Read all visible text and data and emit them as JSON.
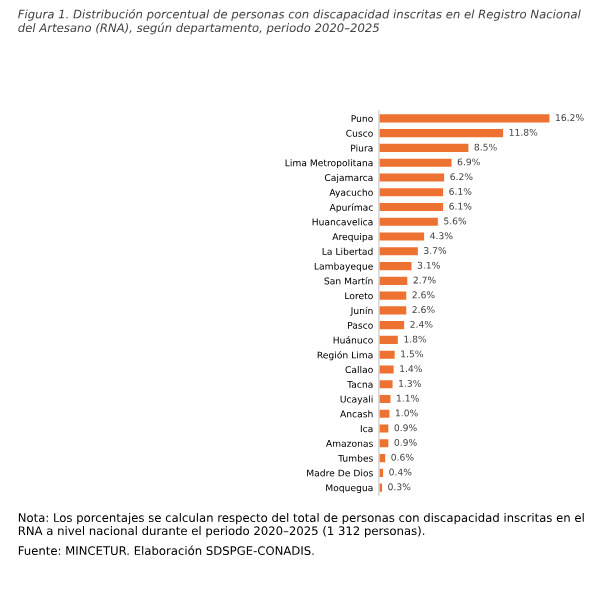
{
  "chart_data": {
    "type": "bar",
    "orientation": "horizontal",
    "title": "Figura 1. Distribución porcentual de personas con discapacidad inscritas en el Registro Nacional del Artesano (RNA), según departamento, periodo 2020–2025",
    "categories": [
      "Puno",
      "Cusco",
      "Piura",
      "Lima Metropolitana",
      "Cajamarca",
      "Ayacucho",
      "Apurímac",
      "Huancavelica",
      "Arequipa",
      "La Libertad",
      "Lambayeque",
      "San Martín",
      "Loreto",
      "Junín",
      "Pasco",
      "Huánuco",
      "Región Lima",
      "Callao",
      "Tacna",
      "Ucayali",
      "Ancash",
      "Ica",
      "Amazonas",
      "Tumbes",
      "Madre De Dios",
      "Moquegua"
    ],
    "values": [
      16.2,
      11.8,
      8.5,
      6.9,
      6.2,
      6.1,
      6.1,
      5.6,
      4.3,
      3.7,
      3.1,
      2.7,
      2.6,
      2.6,
      2.4,
      1.8,
      1.5,
      1.4,
      1.3,
      1.1,
      1.0,
      0.9,
      0.9,
      0.6,
      0.4,
      0.3
    ],
    "value_labels": [
      "16.2%",
      "11.8%",
      "8.5%",
      "6.9%",
      "6.2%",
      "6.1%",
      "6.1%",
      "5.6%",
      "4.3%",
      "3.7%",
      "3.1%",
      "2.7%",
      "2.6%",
      "2.6%",
      "2.4%",
      "1.8%",
      "1.5%",
      "1.4%",
      "1.3%",
      "1.1%",
      "1.0%",
      "0.9%",
      "0.9%",
      "0.6%",
      "0.4%",
      "0.3%"
    ],
    "color": "#ed7131",
    "grid": false,
    "legend": false,
    "annotations": [
      "Nota: Los porcentajes se calculan respecto del total de personas con discapacidad inscritas en el RNA a nivel nacional durante el periodo 2020–2025 (1 312 personas).",
      "Fuente: MINCETUR. Elaboración SDSPGE-CONADIS."
    ]
  }
}
